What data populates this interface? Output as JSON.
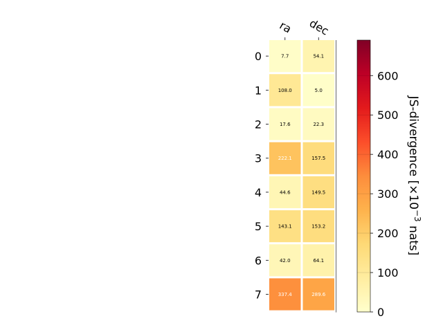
{
  "chart_data": {
    "type": "heatmap",
    "x_labels": [
      "ra",
      "dec"
    ],
    "y_labels": [
      "0",
      "1",
      "2",
      "3",
      "4",
      "5",
      "6",
      "7"
    ],
    "values": [
      [
        7.7,
        54.1
      ],
      [
        108.0,
        5.0
      ],
      [
        17.6,
        22.3
      ],
      [
        222.1,
        157.5
      ],
      [
        44.6,
        149.5
      ],
      [
        143.1,
        153.2
      ],
      [
        42.0,
        64.1
      ],
      [
        337.4,
        289.6
      ]
    ],
    "value_labels": [
      [
        "7.7",
        "54.1"
      ],
      [
        "108.0",
        "5.0"
      ],
      [
        "17.6",
        "22.3"
      ],
      [
        "222.1",
        "157.5"
      ],
      [
        "44.6",
        "149.5"
      ],
      [
        "143.1",
        "153.2"
      ],
      [
        "42.0",
        "64.1"
      ],
      [
        "337.4",
        "289.6"
      ]
    ],
    "colormap": "YlOrRd",
    "colorbar": {
      "label_main": "JS-divergence [×10",
      "label_exp": "−3",
      "label_tail": " nats]",
      "range": [
        0,
        690
      ],
      "ticks": [
        0,
        100,
        200,
        300,
        400,
        500,
        600
      ],
      "tick_labels": [
        "0",
        "100",
        "200",
        "300",
        "400",
        "500",
        "600"
      ]
    }
  }
}
